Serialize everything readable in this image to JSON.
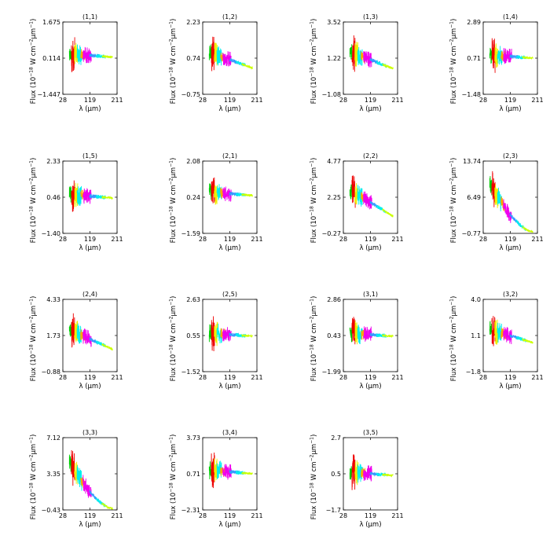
{
  "figure": {
    "x_axis_label": "λ (μm)",
    "y_axis_label": "Flux (10",
    "y_axis_label_exp1": "−18",
    "y_axis_label_mid": " W cm",
    "y_axis_label_exp2": "−2",
    "y_axis_label_mid2": "μm",
    "y_axis_label_exp3": "−1",
    "y_axis_label_end": ")"
  },
  "colors": {
    "green": "#00cc00",
    "red": "#ee0000",
    "yellow": "#eeee00",
    "cyan": "#00eeee",
    "magenta": "#ee00ee",
    "orange": "#ffa500",
    "blue": "#3399ff",
    "lime": "#ccff00"
  },
  "chart_data": [
    {
      "type": "line",
      "title": "(1,1)",
      "xticks": [
        "28",
        "119",
        "211"
      ],
      "xlim": [
        28,
        211
      ],
      "yticks": [
        "−1.447",
        "0.114",
        "1.675"
      ],
      "ylim": [
        -1.447,
        1.675
      ],
      "shape": "flat",
      "baseline": 0.3
    },
    {
      "type": "line",
      "title": "(1,2)",
      "xticks": [
        "28",
        "119",
        "211"
      ],
      "xlim": [
        28,
        211
      ],
      "yticks": [
        "−0.75",
        "0.74",
        "2.23"
      ],
      "ylim": [
        -0.75,
        2.23
      ],
      "shape": "decay",
      "baseline": 0.9
    },
    {
      "type": "line",
      "title": "(1,3)",
      "xticks": [
        "28",
        "119",
        "211"
      ],
      "xlim": [
        28,
        211
      ],
      "yticks": [
        "−1.08",
        "1.22",
        "3.52"
      ],
      "ylim": [
        -1.08,
        3.52
      ],
      "shape": "decay",
      "baseline": 1.5
    },
    {
      "type": "line",
      "title": "(1,4)",
      "xticks": [
        "28",
        "119",
        "211"
      ],
      "xlim": [
        28,
        211
      ],
      "yticks": [
        "−1.48",
        "0.71",
        "2.89"
      ],
      "ylim": [
        -1.48,
        2.89
      ],
      "shape": "flat",
      "baseline": 0.9
    },
    {
      "type": "line",
      "title": "(1,5)",
      "xticks": [
        "28",
        "119",
        "211"
      ],
      "xlim": [
        28,
        211
      ],
      "yticks": [
        "−1.40",
        "0.46",
        "2.33"
      ],
      "ylim": [
        -1.4,
        2.33
      ],
      "shape": "flat",
      "baseline": 0.6
    },
    {
      "type": "line",
      "title": "(2,1)",
      "xticks": [
        "28",
        "119",
        "211"
      ],
      "xlim": [
        28,
        211
      ],
      "yticks": [
        "−1.59",
        "0.24",
        "2.08"
      ],
      "ylim": [
        -1.59,
        2.08
      ],
      "shape": "flat",
      "baseline": 0.5
    },
    {
      "type": "line",
      "title": "(2,2)",
      "xticks": [
        "28",
        "119",
        "211"
      ],
      "xlim": [
        28,
        211
      ],
      "yticks": [
        "−0.27",
        "2.25",
        "4.77"
      ],
      "ylim": [
        -0.27,
        4.77
      ],
      "shape": "decay",
      "baseline": 2.6
    },
    {
      "type": "line",
      "title": "(2,3)",
      "xticks": [
        "28",
        "119",
        "211"
      ],
      "xlim": [
        28,
        211
      ],
      "yticks": [
        "−0.77",
        "6.49",
        "13.74"
      ],
      "ylim": [
        -0.77,
        13.74
      ],
      "shape": "strongdecay",
      "baseline": 9.0
    },
    {
      "type": "line",
      "title": "(2,4)",
      "xticks": [
        "28",
        "119",
        "211"
      ],
      "xlim": [
        28,
        211
      ],
      "yticks": [
        "−0.88",
        "1.73",
        "4.33"
      ],
      "ylim": [
        -0.88,
        4.33
      ],
      "shape": "decay",
      "baseline": 2.0
    },
    {
      "type": "line",
      "title": "(2,5)",
      "xticks": [
        "28",
        "119",
        "211"
      ],
      "xlim": [
        28,
        211
      ],
      "yticks": [
        "−1.52",
        "0.55",
        "2.63"
      ],
      "ylim": [
        -1.52,
        2.63
      ],
      "shape": "flat",
      "baseline": 0.7
    },
    {
      "type": "line",
      "title": "(3,1)",
      "xticks": [
        "28",
        "119",
        "211"
      ],
      "xlim": [
        28,
        211
      ],
      "yticks": [
        "−1.99",
        "0.43",
        "2.86"
      ],
      "ylim": [
        -1.99,
        2.86
      ],
      "shape": "flat",
      "baseline": 0.6
    },
    {
      "type": "line",
      "title": "(3,2)",
      "xticks": [
        "28",
        "119",
        "211"
      ],
      "xlim": [
        28,
        211
      ],
      "yticks": [
        "−1.8",
        "1.1",
        "4.0"
      ],
      "ylim": [
        -1.8,
        4.0
      ],
      "shape": "decay",
      "baseline": 1.4
    },
    {
      "type": "line",
      "title": "(3,3)",
      "xticks": [
        "28",
        "119",
        "211"
      ],
      "xlim": [
        28,
        211
      ],
      "yticks": [
        "−0.43",
        "3.35",
        "7.12"
      ],
      "ylim": [
        -0.43,
        7.12
      ],
      "shape": "strongdecay",
      "baseline": 4.5
    },
    {
      "type": "line",
      "title": "(3,4)",
      "xticks": [
        "28",
        "119",
        "211"
      ],
      "xlim": [
        28,
        211
      ],
      "yticks": [
        "−2.31",
        "0.71",
        "3.73"
      ],
      "ylim": [
        -2.31,
        3.73
      ],
      "shape": "flat",
      "baseline": 1.0
    },
    {
      "type": "line",
      "title": "(3,5)",
      "xticks": [
        "28",
        "119",
        "211"
      ],
      "xlim": [
        28,
        211
      ],
      "yticks": [
        "−1.7",
        "0.5",
        "2.7"
      ],
      "ylim": [
        -1.7,
        2.7
      ],
      "shape": "flat",
      "baseline": 0.6
    }
  ]
}
